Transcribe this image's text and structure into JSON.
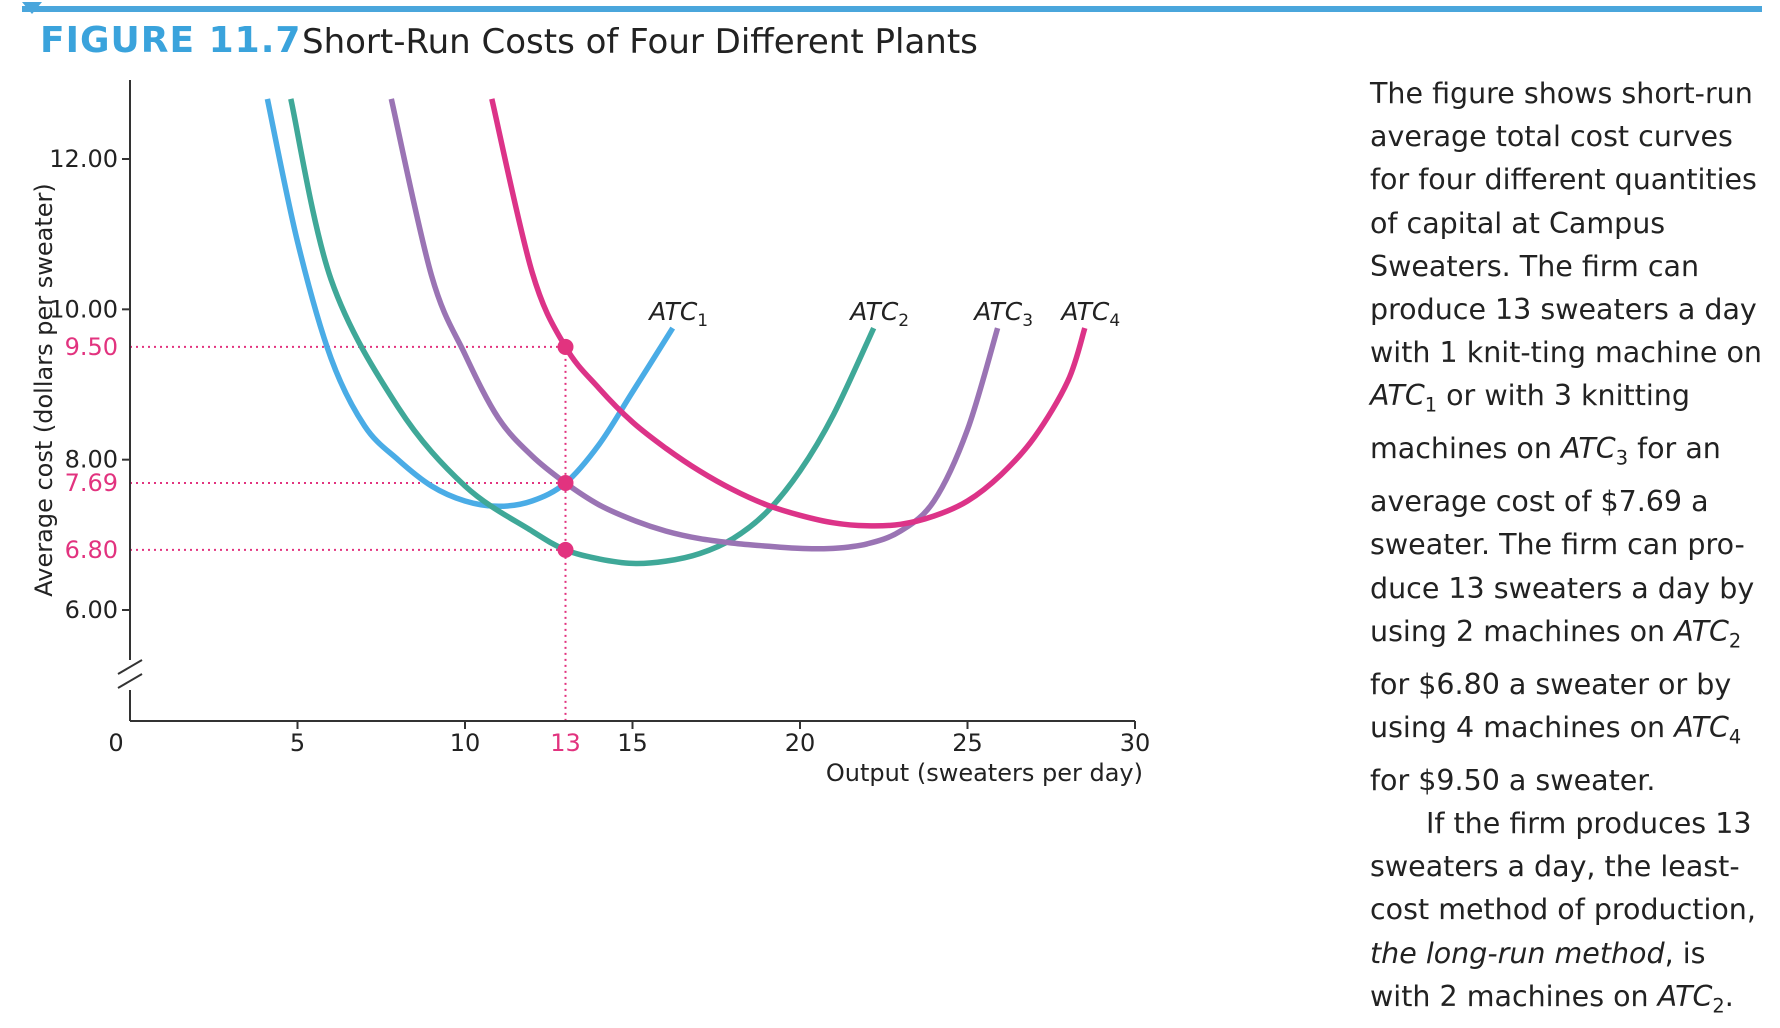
{
  "figure": {
    "number": "FIGURE 11.7",
    "title": "Short-Run Costs of Four Different Plants"
  },
  "caption": {
    "para1": [
      {
        "t": "The figure shows short-run average total cost curves for four different quantities of capital at Campus Sweaters. The firm can produce 13 sweaters a day with 1 knit-ting machine on "
      },
      {
        "t": "ATC",
        "i": true
      },
      {
        "t": "1",
        "sub": true
      },
      {
        "t": " or with 3 knitting machines on "
      },
      {
        "t": "ATC",
        "i": true
      },
      {
        "t": "3",
        "sub": true
      },
      {
        "t": " for an average cost of $7.69 a sweater. The firm can pro-duce 13 sweaters a day by using 2 machines on "
      },
      {
        "t": "ATC",
        "i": true
      },
      {
        "t": "2",
        "sub": true
      },
      {
        "t": " for $6.80 a sweater or by using 4 machines on "
      },
      {
        "t": "ATC",
        "i": true
      },
      {
        "t": "4",
        "sub": true
      },
      {
        "t": " for $9.50 a sweater."
      }
    ],
    "para2": [
      {
        "t": "If the firm produces 13 sweaters a day, the least-cost method of production, "
      },
      {
        "t": "the long-run method",
        "i": true
      },
      {
        "t": ", is with 2 machines on "
      },
      {
        "t": "ATC",
        "i": true
      },
      {
        "t": "2",
        "sub": true
      },
      {
        "t": "."
      }
    ]
  },
  "colors": {
    "atc1": "#4aace6",
    "atc2": "#3fa898",
    "atc3": "#9a74b4",
    "atc4": "#dc3388",
    "highlight": "#e2337f",
    "axis": "#333333"
  },
  "chart_data": {
    "type": "line",
    "xlabel": "Output (sweaters per day)",
    "ylabel": "Average cost (dollars per sweater)",
    "xlim": [
      0,
      30
    ],
    "ylim": [
      4.6,
      13.0
    ],
    "x_ticks": [
      5,
      10,
      15,
      20,
      25,
      30
    ],
    "x_origin_label": "0",
    "y_ticks": [
      6.0,
      8.0,
      10.0,
      12.0
    ],
    "y_tick_labels": [
      "6.00",
      "8.00",
      "10.00",
      "12.00"
    ],
    "y_axis_break": true,
    "grid": false,
    "series": [
      {
        "name": "ATC",
        "sub": "1",
        "color_key": "atc1",
        "x": [
          4.1,
          5,
          6,
          7,
          8,
          9,
          10,
          11,
          12,
          13,
          14,
          15,
          16.2
        ],
        "y": [
          12.8,
          10.9,
          9.35,
          8.45,
          8.0,
          7.65,
          7.45,
          7.38,
          7.45,
          7.69,
          8.2,
          8.9,
          9.75
        ]
      },
      {
        "name": "ATC",
        "sub": "2",
        "color_key": "atc2",
        "x": [
          4.8,
          6,
          8,
          10,
          12,
          13,
          14,
          15,
          16,
          17,
          18,
          19,
          20,
          21,
          22.2
        ],
        "y": [
          12.8,
          10.4,
          8.7,
          7.65,
          7.05,
          6.8,
          6.68,
          6.62,
          6.65,
          6.75,
          6.95,
          7.3,
          7.85,
          8.6,
          9.75
        ]
      },
      {
        "name": "ATC",
        "sub": "3",
        "color_key": "atc3",
        "x": [
          7.8,
          9,
          10,
          11,
          12,
          13,
          14,
          15,
          16,
          17,
          18,
          19,
          20,
          21,
          22,
          23,
          24,
          25,
          25.9
        ],
        "y": [
          12.8,
          10.45,
          9.4,
          8.55,
          8.05,
          7.69,
          7.4,
          7.2,
          7.05,
          6.95,
          6.89,
          6.85,
          6.82,
          6.82,
          6.88,
          7.05,
          7.45,
          8.4,
          9.75
        ]
      },
      {
        "name": "ATC",
        "sub": "4",
        "color_key": "atc4",
        "x": [
          10.8,
          12,
          13,
          14,
          15,
          16,
          17,
          18,
          19,
          20,
          21,
          22,
          23,
          24,
          25,
          26,
          27,
          28,
          28.5
        ],
        "y": [
          12.8,
          10.5,
          9.5,
          8.95,
          8.5,
          8.15,
          7.85,
          7.6,
          7.4,
          7.26,
          7.16,
          7.12,
          7.14,
          7.25,
          7.45,
          7.8,
          8.3,
          9.05,
          9.75
        ]
      }
    ],
    "highlight_x": 13,
    "highlight_x_label": "13",
    "highlight_points": [
      {
        "x": 13,
        "y": 9.5,
        "label": "9.50"
      },
      {
        "x": 13,
        "y": 7.69,
        "label": "7.69"
      },
      {
        "x": 13,
        "y": 6.8,
        "label": "6.80"
      }
    ]
  }
}
